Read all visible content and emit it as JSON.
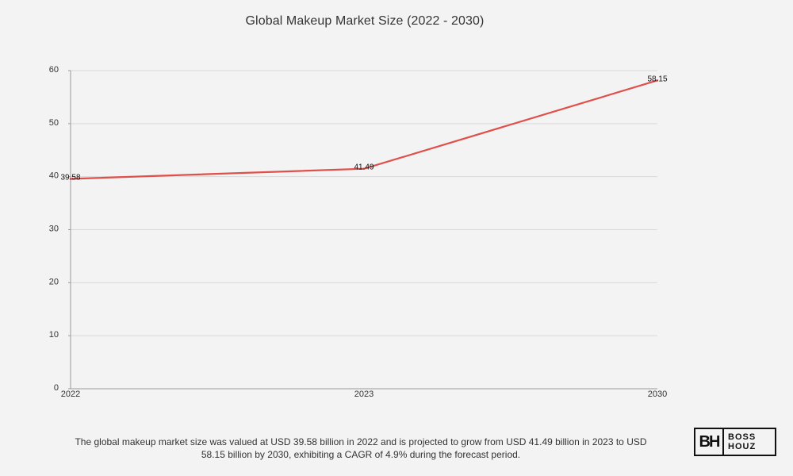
{
  "chart_data": {
    "type": "line",
    "title": "Global Makeup Market Size (2022 - 2030)",
    "categories": [
      "2022",
      "2023",
      "2030"
    ],
    "series": [
      {
        "values": [
          39.58,
          41.49,
          58.15
        ],
        "labels": [
          "39.58",
          "41.49",
          "58.15"
        ]
      }
    ],
    "xlabel": "",
    "ylabel": "",
    "ylim": [
      0,
      60
    ],
    "yticks": [
      "0",
      "10",
      "20",
      "30",
      "40",
      "50",
      "60"
    ],
    "grid": true,
    "line_color": "#e0504a"
  },
  "caption": "The global makeup market size was valued at USD 39.58 billion in 2022 and is projected to grow from USD 41.49 billion in 2023 to USD 58.15 billion by 2030, exhibiting a CAGR of 4.9% during the forecast period.",
  "logo": {
    "mark": "BH",
    "line1": "BOSS",
    "line2": "HOUZ"
  }
}
